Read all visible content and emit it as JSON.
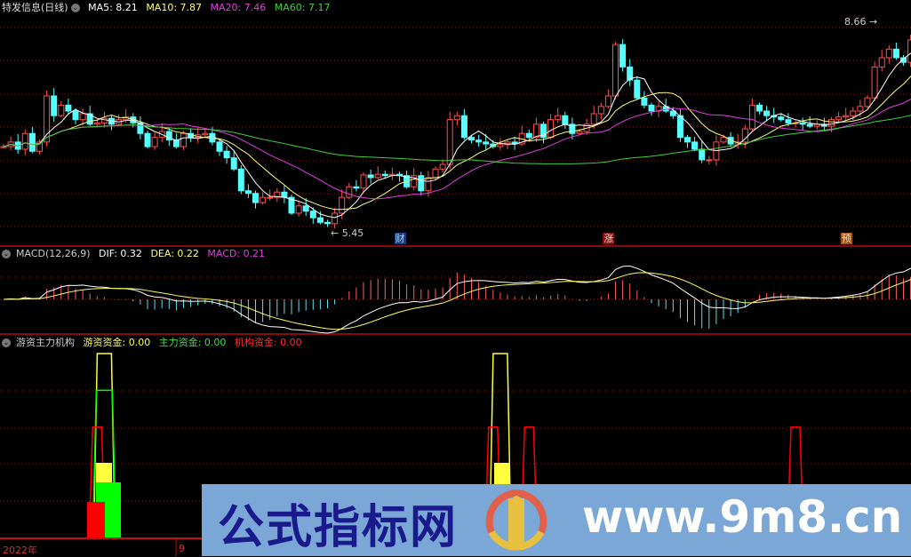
{
  "main": {
    "title": "特发信息(日线)",
    "ma": [
      {
        "label": "MA5: 8.21",
        "color": "#ffffff"
      },
      {
        "label": "MA10: 7.87",
        "color": "#ffff80"
      },
      {
        "label": "MA20: 7.46",
        "color": "#e040e0"
      },
      {
        "label": "MA60: 7.17",
        "color": "#40d040"
      }
    ],
    "high_label": "8.66",
    "low_label": "5.45",
    "markers": [
      {
        "text": "财",
        "bg": "#1b3f7a",
        "color": "#9fd0ff",
        "index": 55
      },
      {
        "text": "涨",
        "bg": "#7a1010",
        "color": "#ffd0d0",
        "index": 84
      },
      {
        "text": "预",
        "bg": "#a0501a",
        "color": "#ffe0b0",
        "index": 117
      }
    ]
  },
  "macd": {
    "title": "MACD(12,26,9)",
    "dif": "DIF: 0.32",
    "dea": "DEA: 0.22",
    "macd": "MACD: 0.21"
  },
  "fund": {
    "title": "游资主力机构",
    "youzi": "游资资金: 0.00",
    "zhuli": "主力资金: 0.00",
    "jigou": "机构资金: 0.00"
  },
  "axis": {
    "dates": [
      "2022年",
      "9"
    ]
  },
  "watermark": {
    "cn": "公式指标网",
    "url": "www.9m8.cn"
  },
  "colors": {
    "up": "#ff5050",
    "down": "#54ffff",
    "grid": "#8b1a1a",
    "yellow": "#ffff40",
    "green": "#00ff00",
    "red": "#ff0000"
  },
  "chart_data": {
    "type": "candlestick",
    "price_range": [
      5.45,
      8.66
    ],
    "closes": [
      6.69,
      6.76,
      6.65,
      6.89,
      6.62,
      6.76,
      7.46,
      7.16,
      7.32,
      7.23,
      7.1,
      7.19,
      7.03,
      7.05,
      7.12,
      7.03,
      7.1,
      7.14,
      7.05,
      6.89,
      6.69,
      6.83,
      6.92,
      6.79,
      6.69,
      6.89,
      6.83,
      6.87,
      6.89,
      6.76,
      6.62,
      6.52,
      6.35,
      6.02,
      5.98,
      5.84,
      5.92,
      5.92,
      6.0,
      5.92,
      5.68,
      5.79,
      5.71,
      5.61,
      5.54,
      5.52,
      5.68,
      5.92,
      6.08,
      6.06,
      6.26,
      6.22,
      6.27,
      6.25,
      6.27,
      6.25,
      6.08,
      6.25,
      6.02,
      6.22,
      6.35,
      6.42,
      7.1,
      7.16,
      6.83,
      6.79,
      6.76,
      6.73,
      6.69,
      6.72,
      6.76,
      6.73,
      6.89,
      6.83,
      7.03,
      6.83,
      7.1,
      7.16,
      7.03,
      6.89,
      6.92,
      7.03,
      7.19,
      7.3,
      7.46,
      8.24,
      7.9,
      7.7,
      7.43,
      7.32,
      7.23,
      7.3,
      7.23,
      7.16,
      6.83,
      6.76,
      6.65,
      6.49,
      6.49,
      6.76,
      6.83,
      6.73,
      6.76,
      6.96,
      7.32,
      7.23,
      7.16,
      7.14,
      7.1,
      7.05,
      7.05,
      7.03,
      7.0,
      7.03,
      7.0,
      7.1,
      7.14,
      7.16,
      7.23,
      7.3,
      7.43,
      7.9,
      8.04,
      8.17,
      8.04,
      7.97,
      8.31,
      8.24
    ],
    "fund_signals": [
      {
        "series": "游资资金",
        "index": 14,
        "value": 100
      },
      {
        "series": "主力资金",
        "index": 14,
        "value": 80
      },
      {
        "series": "机构资金",
        "index": 13,
        "value": 60
      },
      {
        "series": "游资资金",
        "index": 69,
        "value": 100
      },
      {
        "series": "机构资金",
        "index": 68,
        "value": 60
      },
      {
        "series": "机构资金",
        "index": 73,
        "value": 60
      },
      {
        "series": "机构资金",
        "index": 110,
        "value": 60
      }
    ]
  }
}
